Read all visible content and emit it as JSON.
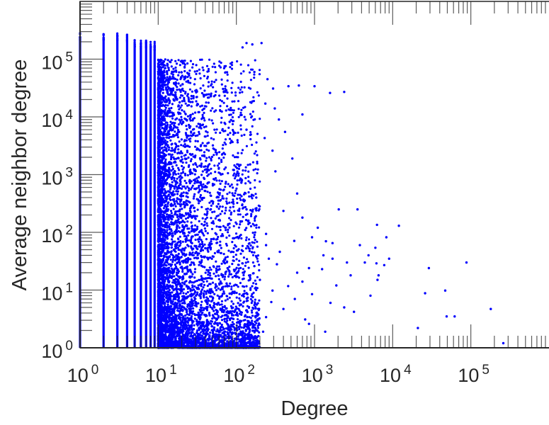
{
  "chart_data": {
    "type": "scatter",
    "title": "",
    "xlabel": "Degree",
    "ylabel": "Average neighbor degree",
    "xscale": "log",
    "yscale": "log",
    "xlim": [
      1,
      1000000
    ],
    "ylim": [
      1,
      1000000
    ],
    "x_ticks": [
      {
        "base": "10",
        "exp": "0",
        "value": 1
      },
      {
        "base": "10",
        "exp": "1",
        "value": 10
      },
      {
        "base": "10",
        "exp": "2",
        "value": 100
      },
      {
        "base": "10",
        "exp": "3",
        "value": 1000
      },
      {
        "base": "10",
        "exp": "4",
        "value": 10000
      },
      {
        "base": "10",
        "exp": "5",
        "value": 100000
      }
    ],
    "y_ticks": [
      {
        "base": "10",
        "exp": "0",
        "value": 1
      },
      {
        "base": "10",
        "exp": "1",
        "value": 10
      },
      {
        "base": "10",
        "exp": "2",
        "value": 100
      },
      {
        "base": "10",
        "exp": "3",
        "value": 1000
      },
      {
        "base": "10",
        "exp": "4",
        "value": 10000
      },
      {
        "base": "10",
        "exp": "5",
        "value": 100000
      }
    ],
    "grid": false,
    "marker_color": "#0000ff",
    "axis_color": "#262626",
    "dense_columns": [
      {
        "degree": 1,
        "ymin": 1,
        "ymax": 300000
      },
      {
        "degree": 2,
        "ymin": 1,
        "ymax": 290000
      },
      {
        "degree": 3,
        "ymin": 1,
        "ymax": 290000
      },
      {
        "degree": 4,
        "ymin": 1,
        "ymax": 280000
      },
      {
        "degree": 5,
        "ymin": 1,
        "ymax": 220000
      },
      {
        "degree": 6,
        "ymin": 1,
        "ymax": 210000
      },
      {
        "degree": 7,
        "ymin": 1,
        "ymax": 210000
      },
      {
        "degree": 8,
        "ymin": 1,
        "ymax": 200000
      },
      {
        "degree": 9,
        "ymin": 1,
        "ymax": 200000
      }
    ],
    "dense_cloud": {
      "x_range": [
        10,
        200
      ],
      "y_range": [
        1,
        100000
      ],
      "count": 6500
    },
    "points": [
      [
        135,
        190000
      ],
      [
        295,
        31000
      ],
      [
        464,
        34000
      ],
      [
        630,
        35000
      ],
      [
        1000,
        34000
      ],
      [
        1580,
        26000
      ],
      [
        2400,
        27000
      ],
      [
        316,
        1140
      ],
      [
        600,
        470
      ],
      [
        135,
        250
      ],
      [
        180,
        240
      ],
      [
        400,
        235
      ],
      [
        2040,
        250
      ],
      [
        3550,
        250
      ],
      [
        6300,
        135
      ],
      [
        8300,
        82
      ],
      [
        6000,
        54
      ],
      [
        4900,
        40
      ],
      [
        4400,
        30
      ],
      [
        2600,
        30
      ],
      [
        1700,
        35
      ],
      [
        1250,
        23
      ],
      [
        850,
        24
      ],
      [
        6200,
        29
      ],
      [
        7800,
        27
      ],
      [
        6600,
        18
      ],
      [
        6400,
        15
      ],
      [
        29000,
        24
      ],
      [
        88000,
        30
      ],
      [
        26000,
        8.8
      ],
      [
        47000,
        9.8
      ],
      [
        49000,
        3.5
      ],
      [
        62000,
        3.5
      ],
      [
        180000,
        4.7
      ],
      [
        21000,
        2.2
      ],
      [
        260000,
        1.2
      ],
      [
        850,
        2.6
      ],
      [
        1370,
        1.9
      ],
      [
        2400,
        5
      ],
      [
        930,
        8.5
      ],
      [
        560,
        7
      ],
      [
        400,
        4.7
      ],
      [
        240,
        3.4
      ],
      [
        220,
        1.9
      ],
      [
        100,
        1.4
      ],
      [
        50,
        1.1
      ],
      [
        3200,
        4.2
      ],
      [
        460,
        11.7
      ],
      [
        290,
        9.8
      ],
      [
        140,
        7.4
      ],
      [
        200,
        15
      ],
      [
        600,
        20
      ],
      [
        360,
        46
      ],
      [
        550,
        71
      ],
      [
        930,
        82
      ],
      [
        240,
        94
      ],
      [
        160,
        67
      ],
      [
        1400,
        70
      ],
      [
        1700,
        65
      ],
      [
        260,
        35
      ],
      [
        170,
        26
      ],
      [
        125,
        20
      ],
      [
        83,
        630
      ],
      [
        93,
        1200
      ],
      [
        230,
        4300
      ],
      [
        135,
        6000
      ],
      [
        235,
        17000
      ],
      [
        82,
        8200
      ],
      [
        78,
        4900
      ],
      [
        50,
        3200
      ],
      [
        33,
        900
      ],
      [
        40,
        520
      ],
      [
        27,
        190
      ],
      [
        21,
        95
      ],
      [
        17,
        40
      ],
      [
        40,
        53
      ],
      [
        61,
        23
      ],
      [
        75,
        13
      ],
      [
        50,
        7.4
      ],
      [
        27,
        4.2
      ],
      [
        14,
        2.4
      ],
      [
        11.5,
        1.4
      ],
      [
        19,
        1.8
      ],
      [
        34,
        2.8
      ],
      [
        83,
        3.2
      ],
      [
        115,
        5.6
      ],
      [
        16,
        1.05
      ],
      [
        120,
        160000
      ],
      [
        160,
        180000
      ],
      [
        210,
        190000
      ],
      [
        170,
        60000
      ],
      [
        250,
        45000
      ],
      [
        310,
        14000
      ],
      [
        350,
        9000
      ],
      [
        700,
        11000
      ],
      [
        420,
        5500
      ],
      [
        290,
        2600
      ],
      [
        520,
        1900
      ],
      [
        150,
        1500
      ],
      [
        110,
        800
      ],
      [
        180,
        400
      ],
      [
        700,
        180
      ],
      [
        1100,
        120
      ],
      [
        1300,
        40
      ],
      [
        2900,
        18
      ],
      [
        1900,
        12
      ],
      [
        5200,
        8
      ],
      [
        3800,
        60
      ],
      [
        9000,
        35
      ],
      [
        12000,
        130
      ],
      [
        700,
        14
      ],
      [
        330,
        28
      ],
      [
        240,
        60
      ],
      [
        130,
        110
      ],
      [
        1600,
        6
      ],
      [
        760,
        3.1
      ],
      [
        280,
        6.2
      ],
      [
        190,
        3.8
      ],
      [
        95,
        2.2
      ],
      [
        60,
        1.6
      ]
    ]
  }
}
